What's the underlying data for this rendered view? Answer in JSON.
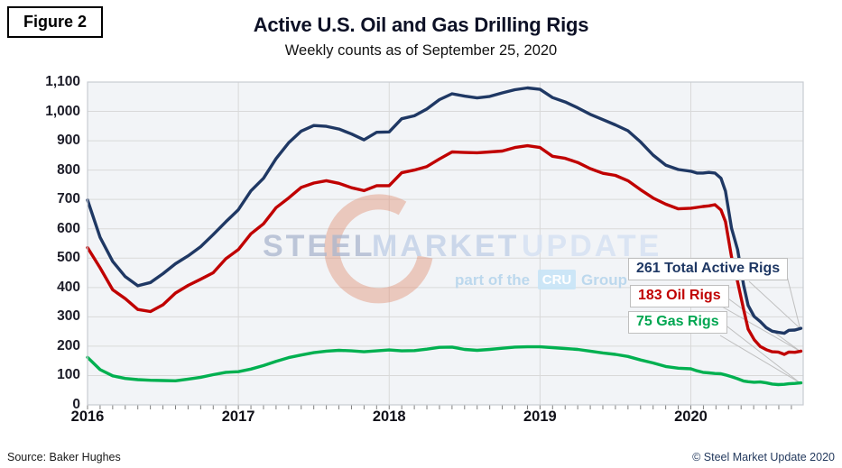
{
  "figure_label": "Figure 2",
  "title": "Active U.S. Oil and Gas Drilling Rigs",
  "subtitle": "Weekly counts as of September 25, 2020",
  "watermark": {
    "steel": "STEEL",
    "market": "MARKET",
    "update": "UPDATE",
    "part_of_the": "part of the",
    "cru": "CRU",
    "group": "Group"
  },
  "annotations": [
    {
      "label": "261 Total Active Rigs",
      "value": 261,
      "color": "#1f3864"
    },
    {
      "label": "183 Oil Rigs",
      "value": 183,
      "color": "#c00000"
    },
    {
      "label": "75 Gas Rigs",
      "value": 75,
      "color": "#00a651"
    }
  ],
  "footer": {
    "source": "Source: Baker Hughes",
    "copyright": "© Steel Market Update 2020"
  },
  "colors": {
    "total_line": "#1f3864",
    "oil_line": "#c00000",
    "gas_line": "#00b050",
    "gridline": "#d9d9d9",
    "plot_background": "#f2f4f7",
    "plot_border": "#c8ccd2",
    "leader_line": "#bfbfbf",
    "tick": "#7f7f7f"
  },
  "chart_data": {
    "type": "line",
    "title": "Active U.S. Oil and Gas Drilling Rigs",
    "subtitle": "Weekly counts as of September 25, 2020",
    "xlabel": "",
    "ylabel": "",
    "grid": true,
    "legend_position": "callouts-right",
    "ylim": [
      0,
      1100
    ],
    "ytick_step": 100,
    "ytick_labels": [
      "0",
      "100",
      "200",
      "300",
      "400",
      "500",
      "600",
      "700",
      "800",
      "900",
      "1,000",
      "1,100"
    ],
    "xtick_labels": [
      "2016",
      "2017",
      "2018",
      "2019",
      "2020"
    ],
    "x_end": "2020-09-25",
    "x": [
      2016.0,
      2016.083,
      2016.167,
      2016.25,
      2016.333,
      2016.417,
      2016.5,
      2016.583,
      2016.667,
      2016.75,
      2016.833,
      2016.917,
      2017.0,
      2017.083,
      2017.167,
      2017.25,
      2017.333,
      2017.417,
      2017.5,
      2017.583,
      2017.667,
      2017.75,
      2017.833,
      2017.917,
      2018.0,
      2018.083,
      2018.167,
      2018.25,
      2018.333,
      2018.417,
      2018.5,
      2018.583,
      2018.667,
      2018.75,
      2018.833,
      2018.917,
      2019.0,
      2019.083,
      2019.167,
      2019.25,
      2019.333,
      2019.417,
      2019.5,
      2019.583,
      2019.667,
      2019.75,
      2019.833,
      2019.917,
      2020.0,
      2020.04,
      2020.08,
      2020.12,
      2020.16,
      2020.2,
      2020.23,
      2020.27,
      2020.31,
      2020.35,
      2020.38,
      2020.42,
      2020.46,
      2020.5,
      2020.54,
      2020.58,
      2020.62,
      2020.65,
      2020.69,
      2020.73
    ],
    "series": [
      {
        "name": "Total Active Rigs",
        "color": "#1f3864",
        "final_value": 261,
        "values": [
          698,
          571,
          489,
          437,
          406,
          417,
          447,
          481,
          508,
          539,
          580,
          624,
          665,
          729,
          772,
          839,
          893,
          933,
          952,
          949,
          940,
          923,
          903,
          929,
          930,
          975,
          985,
          1008,
          1040,
          1060,
          1052,
          1046,
          1051,
          1063,
          1074,
          1080,
          1075,
          1047,
          1032,
          1012,
          990,
          972,
          954,
          934,
          896,
          851,
          817,
          802,
          796,
          790,
          790,
          792,
          790,
          772,
          728,
          602,
          529,
          408,
          339,
          301,
          284,
          263,
          251,
          247,
          244,
          254,
          255,
          261
        ]
      },
      {
        "name": "Oil Rigs",
        "color": "#c00000",
        "final_value": 183,
        "values": [
          536,
          467,
          392,
          362,
          325,
          318,
          341,
          381,
          407,
          428,
          450,
          498,
          529,
          583,
          617,
          672,
          705,
          741,
          756,
          764,
          755,
          740,
          730,
          747,
          747,
          791,
          800,
          812,
          838,
          862,
          860,
          859,
          862,
          865,
          877,
          883,
          877,
          847,
          840,
          826,
          805,
          789,
          782,
          764,
          733,
          705,
          684,
          668,
          670,
          673,
          676,
          678,
          682,
          664,
          624,
          504,
          420,
          325,
          258,
          222,
          199,
          188,
          181,
          180,
          172,
          180,
          179,
          183
        ]
      },
      {
        "name": "Gas Rigs",
        "color": "#00b050",
        "final_value": 75,
        "values": [
          162,
          120,
          99,
          90,
          86,
          84,
          83,
          82,
          88,
          94,
          103,
          111,
          113,
          122,
          134,
          148,
          161,
          170,
          178,
          183,
          186,
          184,
          181,
          184,
          187,
          184,
          185,
          190,
          196,
          197,
          189,
          186,
          189,
          193,
          197,
          198,
          198,
          195,
          192,
          189,
          183,
          177,
          172,
          165,
          153,
          143,
          131,
          125,
          123,
          116,
          111,
          109,
          107,
          106,
          102,
          96,
          89,
          81,
          79,
          77,
          78,
          75,
          71,
          69,
          70,
          72,
          73,
          75
        ]
      }
    ]
  }
}
